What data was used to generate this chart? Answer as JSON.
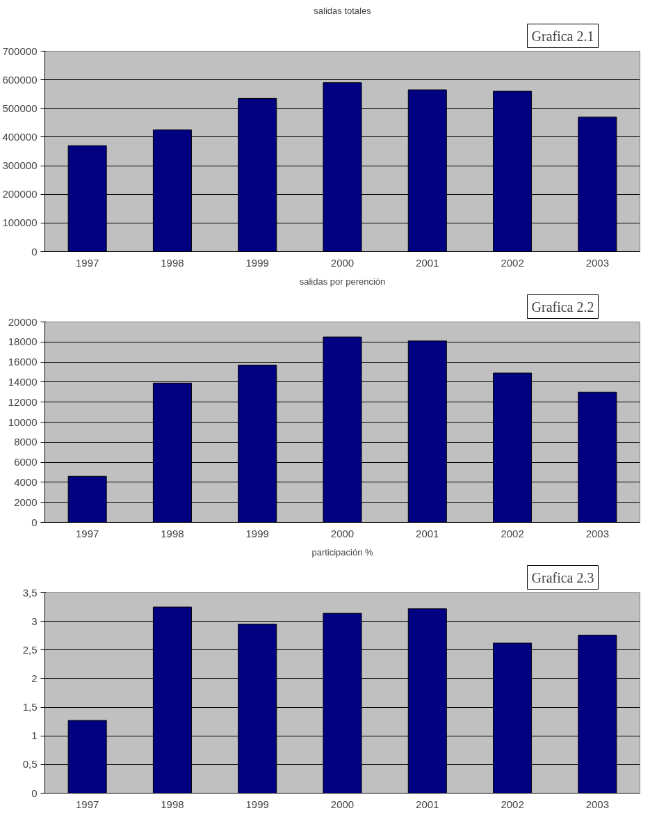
{
  "chart_data": [
    {
      "type": "bar",
      "title": "salidas totales",
      "annotations": [
        "Grafica 2.1"
      ],
      "categories": [
        "1997",
        "1998",
        "1999",
        "2000",
        "2001",
        "2002",
        "2003"
      ],
      "values": [
        370000,
        425000,
        535000,
        590000,
        565000,
        560000,
        470000
      ],
      "color": "#000080",
      "ylim": [
        0,
        700000
      ],
      "yticks": [
        0,
        100000,
        200000,
        300000,
        400000,
        500000,
        600000,
        700000
      ],
      "grid": "y"
    },
    {
      "type": "bar",
      "title": "salidas por perención",
      "annotations": [
        "Grafica 2.2"
      ],
      "categories": [
        "1997",
        "1998",
        "1999",
        "2000",
        "2001",
        "2002",
        "2003"
      ],
      "values": [
        4600,
        13900,
        15700,
        18500,
        18100,
        14900,
        13000
      ],
      "color": "#000080",
      "ylim": [
        0,
        20000
      ],
      "yticks": [
        0,
        2000,
        4000,
        6000,
        8000,
        10000,
        12000,
        14000,
        16000,
        18000,
        20000
      ],
      "grid": "y"
    },
    {
      "type": "bar",
      "title": "participación %",
      "annotations": [
        "Grafica 2.3"
      ],
      "categories": [
        "1997",
        "1998",
        "1999",
        "2000",
        "2001",
        "2002",
        "2003"
      ],
      "values": [
        1.27,
        3.25,
        2.95,
        3.14,
        3.22,
        2.62,
        2.76
      ],
      "color": "#000080",
      "ylim": [
        0,
        3.5
      ],
      "yticks": [
        0,
        {
          "value": 0.5,
          "label": "0,5"
        },
        1,
        {
          "value": 1.5,
          "label": "1,5"
        },
        2,
        {
          "value": 2.5,
          "label": "2,5"
        },
        3,
        {
          "value": 3.5,
          "label": "3,5"
        }
      ],
      "grid": "y"
    }
  ]
}
